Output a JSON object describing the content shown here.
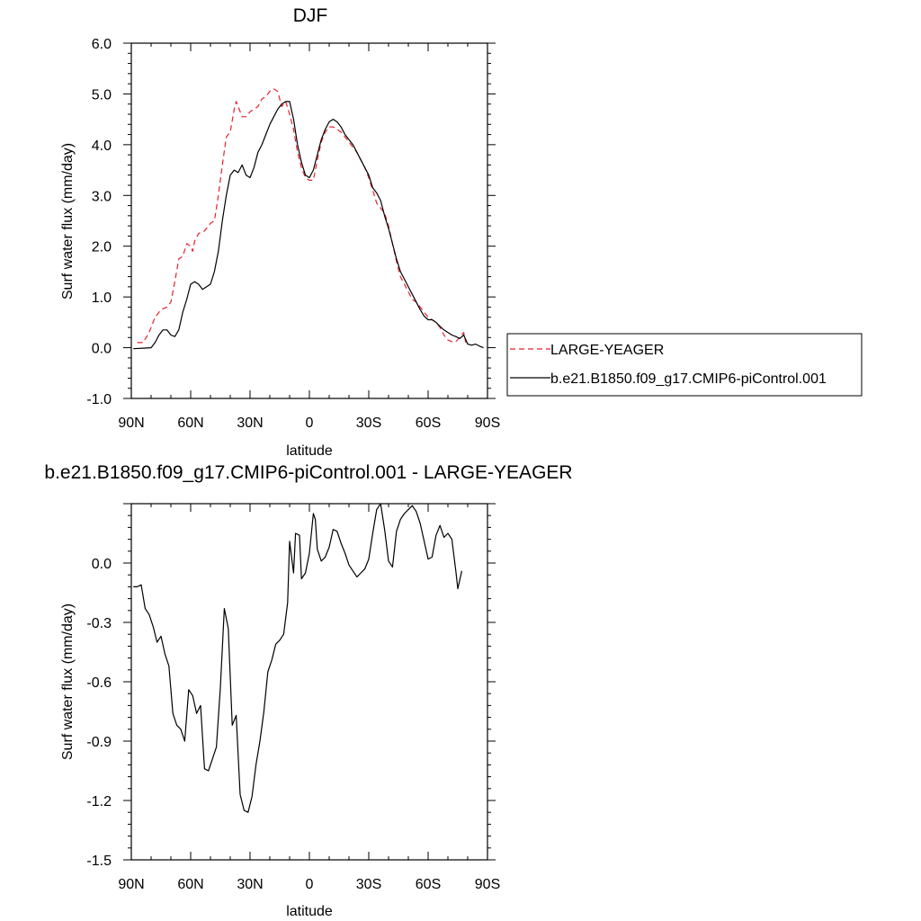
{
  "chart_data": [
    {
      "type": "line",
      "title": "DJF",
      "xlabel": "latitude",
      "ylabel": "Surf water flux (mm/day)",
      "xlim": [
        -90,
        90
      ],
      "ylim": [
        -1.0,
        6.0
      ],
      "x_ticks": [
        -90,
        -60,
        -30,
        0,
        30,
        60,
        90
      ],
      "x_tick_labels": [
        "90N",
        "60N",
        "30N",
        "0",
        "30S",
        "60S",
        "90S"
      ],
      "y_ticks": [
        -1.0,
        0.0,
        1.0,
        2.0,
        3.0,
        4.0,
        5.0,
        6.0
      ],
      "y_tick_labels": [
        "-1.0",
        "0.0",
        "1.0",
        "2.0",
        "3.0",
        "4.0",
        "5.0",
        "6.0"
      ],
      "legend_position": "right",
      "series": [
        {
          "name": "LARGE-YEAGER",
          "color": "#e8202a",
          "dash": "dashed",
          "points": [
            [
              -87,
              0.1
            ],
            [
              -84,
              0.1
            ],
            [
              -81,
              0.3
            ],
            [
              -78,
              0.6
            ],
            [
              -75,
              0.75
            ],
            [
              -72,
              0.8
            ],
            [
              -70,
              0.9
            ],
            [
              -68,
              1.3
            ],
            [
              -66,
              1.75
            ],
            [
              -64,
              1.8
            ],
            [
              -62,
              2.05
            ],
            [
              -60,
              2.0
            ],
            [
              -59,
              1.9
            ],
            [
              -58,
              2.1
            ],
            [
              -56,
              2.25
            ],
            [
              -53,
              2.3
            ],
            [
              -50,
              2.45
            ],
            [
              -48,
              2.5
            ],
            [
              -46,
              3.0
            ],
            [
              -44,
              3.6
            ],
            [
              -42,
              4.15
            ],
            [
              -40,
              4.25
            ],
            [
              -38,
              4.7
            ],
            [
              -37,
              4.85
            ],
            [
              -36,
              4.75
            ],
            [
              -34,
              4.55
            ],
            [
              -32,
              4.55
            ],
            [
              -30,
              4.65
            ],
            [
              -28,
              4.7
            ],
            [
              -26,
              4.75
            ],
            [
              -24,
              4.9
            ],
            [
              -22,
              4.95
            ],
            [
              -20,
              5.05
            ],
            [
              -18,
              5.1
            ],
            [
              -16,
              5.05
            ],
            [
              -14,
              4.75
            ],
            [
              -12,
              4.85
            ],
            [
              -10,
              4.6
            ],
            [
              -8,
              4.3
            ],
            [
              -6,
              3.85
            ],
            [
              -4,
              3.55
            ],
            [
              -2,
              3.35
            ],
            [
              0,
              3.3
            ],
            [
              2,
              3.3
            ],
            [
              4,
              3.7
            ],
            [
              6,
              4.05
            ],
            [
              8,
              4.25
            ],
            [
              10,
              4.35
            ],
            [
              12,
              4.35
            ],
            [
              14,
              4.3
            ],
            [
              16,
              4.25
            ],
            [
              18,
              4.15
            ],
            [
              20,
              4.05
            ],
            [
              22,
              3.95
            ],
            [
              24,
              3.85
            ],
            [
              26,
              3.7
            ],
            [
              28,
              3.55
            ],
            [
              30,
              3.35
            ],
            [
              32,
              3.1
            ],
            [
              34,
              2.85
            ],
            [
              36,
              2.75
            ],
            [
              38,
              2.65
            ],
            [
              40,
              2.4
            ],
            [
              42,
              2.05
            ],
            [
              44,
              1.7
            ],
            [
              46,
              1.4
            ],
            [
              48,
              1.25
            ],
            [
              50,
              1.1
            ],
            [
              52,
              0.95
            ],
            [
              54,
              0.9
            ],
            [
              56,
              0.8
            ],
            [
              58,
              0.7
            ],
            [
              60,
              0.6
            ],
            [
              62,
              0.55
            ],
            [
              64,
              0.5
            ],
            [
              66,
              0.4
            ],
            [
              68,
              0.25
            ],
            [
              70,
              0.15
            ],
            [
              72,
              0.12
            ],
            [
              74,
              0.12
            ],
            [
              76,
              0.2
            ],
            [
              78,
              0.3
            ],
            [
              79,
              0.1
            ]
          ]
        },
        {
          "name": "b.e21.B1850.f09_g17.CMIP6-piControl.001",
          "color": "#000000",
          "dash": "solid",
          "points": [
            [
              -89,
              -0.02
            ],
            [
              -84,
              -0.01
            ],
            [
              -80,
              0.0
            ],
            [
              -78,
              0.1
            ],
            [
              -76,
              0.25
            ],
            [
              -74,
              0.35
            ],
            [
              -72,
              0.35
            ],
            [
              -70,
              0.25
            ],
            [
              -68,
              0.22
            ],
            [
              -66,
              0.35
            ],
            [
              -64,
              0.7
            ],
            [
              -62,
              0.95
            ],
            [
              -60,
              1.25
            ],
            [
              -58,
              1.3
            ],
            [
              -56,
              1.25
            ],
            [
              -54,
              1.15
            ],
            [
              -52,
              1.2
            ],
            [
              -50,
              1.25
            ],
            [
              -48,
              1.5
            ],
            [
              -46,
              1.9
            ],
            [
              -44,
              2.5
            ],
            [
              -42,
              3.0
            ],
            [
              -40,
              3.4
            ],
            [
              -38,
              3.5
            ],
            [
              -36,
              3.45
            ],
            [
              -34,
              3.6
            ],
            [
              -32,
              3.4
            ],
            [
              -30,
              3.35
            ],
            [
              -28,
              3.55
            ],
            [
              -26,
              3.85
            ],
            [
              -24,
              4.0
            ],
            [
              -22,
              4.2
            ],
            [
              -20,
              4.4
            ],
            [
              -18,
              4.55
            ],
            [
              -16,
              4.7
            ],
            [
              -14,
              4.8
            ],
            [
              -12,
              4.85
            ],
            [
              -10,
              4.85
            ],
            [
              -8,
              4.5
            ],
            [
              -6,
              4.0
            ],
            [
              -4,
              3.65
            ],
            [
              -2,
              3.4
            ],
            [
              0,
              3.35
            ],
            [
              2,
              3.5
            ],
            [
              4,
              3.8
            ],
            [
              6,
              4.1
            ],
            [
              8,
              4.3
            ],
            [
              10,
              4.45
            ],
            [
              12,
              4.5
            ],
            [
              14,
              4.45
            ],
            [
              16,
              4.35
            ],
            [
              18,
              4.2
            ],
            [
              20,
              4.1
            ],
            [
              22,
              4.0
            ],
            [
              24,
              3.85
            ],
            [
              26,
              3.7
            ],
            [
              28,
              3.55
            ],
            [
              30,
              3.4
            ],
            [
              32,
              3.15
            ],
            [
              34,
              3.05
            ],
            [
              36,
              2.9
            ],
            [
              38,
              2.6
            ],
            [
              40,
              2.35
            ],
            [
              42,
              2.05
            ],
            [
              44,
              1.75
            ],
            [
              46,
              1.5
            ],
            [
              48,
              1.35
            ],
            [
              50,
              1.2
            ],
            [
              52,
              1.05
            ],
            [
              54,
              0.9
            ],
            [
              56,
              0.75
            ],
            [
              58,
              0.62
            ],
            [
              60,
              0.55
            ],
            [
              62,
              0.55
            ],
            [
              64,
              0.5
            ],
            [
              66,
              0.42
            ],
            [
              68,
              0.35
            ],
            [
              70,
              0.3
            ],
            [
              72,
              0.25
            ],
            [
              74,
              0.22
            ],
            [
              76,
              0.18
            ],
            [
              78,
              0.25
            ],
            [
              80,
              0.07
            ],
            [
              82,
              0.05
            ],
            [
              84,
              0.07
            ],
            [
              86,
              0.03
            ],
            [
              88,
              0.0
            ]
          ]
        }
      ]
    },
    {
      "type": "line",
      "title": "b.e21.B1850.f09_g17.CMIP6-piControl.001 - LARGE-YEAGER",
      "xlabel": "latitude",
      "ylabel": "Surf water flux (mm/day)",
      "xlim": [
        -90,
        90
      ],
      "ylim": [
        -1.5,
        0.3
      ],
      "x_ticks": [
        -90,
        -60,
        -30,
        0,
        30,
        60,
        90
      ],
      "x_tick_labels": [
        "90N",
        "60N",
        "30N",
        "0",
        "30S",
        "60S",
        "90S"
      ],
      "y_ticks": [
        -1.5,
        -1.2,
        -0.9,
        -0.6,
        -0.3,
        0.0
      ],
      "y_tick_labels": [
        "-1.5",
        "-1.2",
        "-0.9",
        "-0.6",
        "-0.3",
        "0.0"
      ],
      "series": [
        {
          "color": "#000000",
          "dash": "solid",
          "points": [
            [
              -89,
              -0.12
            ],
            [
              -87,
              -0.12
            ],
            [
              -85,
              -0.11
            ],
            [
              -83,
              -0.23
            ],
            [
              -81,
              -0.26
            ],
            [
              -79,
              -0.32
            ],
            [
              -77,
              -0.4
            ],
            [
              -75,
              -0.37
            ],
            [
              -73,
              -0.46
            ],
            [
              -71,
              -0.52
            ],
            [
              -69,
              -0.76
            ],
            [
              -67,
              -0.82
            ],
            [
              -65,
              -0.84
            ],
            [
              -63,
              -0.9
            ],
            [
              -61,
              -0.64
            ],
            [
              -59,
              -0.67
            ],
            [
              -57,
              -0.76
            ],
            [
              -55,
              -0.72
            ],
            [
              -53,
              -1.04
            ],
            [
              -51,
              -1.05
            ],
            [
              -49,
              -0.99
            ],
            [
              -47,
              -0.93
            ],
            [
              -45,
              -0.63
            ],
            [
              -43,
              -0.23
            ],
            [
              -41,
              -0.33
            ],
            [
              -39,
              -0.82
            ],
            [
              -37,
              -0.77
            ],
            [
              -35,
              -1.17
            ],
            [
              -33,
              -1.25
            ],
            [
              -31,
              -1.26
            ],
            [
              -29,
              -1.18
            ],
            [
              -27,
              -1.02
            ],
            [
              -25,
              -0.9
            ],
            [
              -23,
              -0.75
            ],
            [
              -21,
              -0.55
            ],
            [
              -19,
              -0.49
            ],
            [
              -17,
              -0.41
            ],
            [
              -15,
              -0.39
            ],
            [
              -13,
              -0.36
            ],
            [
              -11,
              -0.2
            ],
            [
              -10,
              0.11
            ],
            [
              -8,
              -0.05
            ],
            [
              -7,
              0.15
            ],
            [
              -5,
              0.14
            ],
            [
              -4,
              -0.08
            ],
            [
              -2,
              -0.05
            ],
            [
              0,
              0.05
            ],
            [
              2,
              0.25
            ],
            [
              3,
              0.22
            ],
            [
              4,
              0.07
            ],
            [
              6,
              0.01
            ],
            [
              8,
              0.03
            ],
            [
              10,
              0.08
            ],
            [
              12,
              0.17
            ],
            [
              14,
              0.16
            ],
            [
              16,
              0.1
            ],
            [
              18,
              0.05
            ],
            [
              20,
              -0.01
            ],
            [
              22,
              -0.04
            ],
            [
              24,
              -0.07
            ],
            [
              26,
              -0.05
            ],
            [
              28,
              -0.03
            ],
            [
              30,
              0.02
            ],
            [
              32,
              0.15
            ],
            [
              34,
              0.27
            ],
            [
              36,
              0.3
            ],
            [
              38,
              0.17
            ],
            [
              40,
              0.01
            ],
            [
              42,
              -0.02
            ],
            [
              44,
              0.16
            ],
            [
              46,
              0.22
            ],
            [
              48,
              0.25
            ],
            [
              50,
              0.27
            ],
            [
              52,
              0.29
            ],
            [
              54,
              0.26
            ],
            [
              56,
              0.2
            ],
            [
              58,
              0.11
            ],
            [
              60,
              0.02
            ],
            [
              62,
              0.03
            ],
            [
              64,
              0.14
            ],
            [
              66,
              0.19
            ],
            [
              68,
              0.13
            ],
            [
              70,
              0.15
            ],
            [
              72,
              0.12
            ],
            [
              74,
              -0.04
            ],
            [
              75,
              -0.13
            ],
            [
              77,
              -0.04
            ]
          ]
        }
      ]
    }
  ]
}
